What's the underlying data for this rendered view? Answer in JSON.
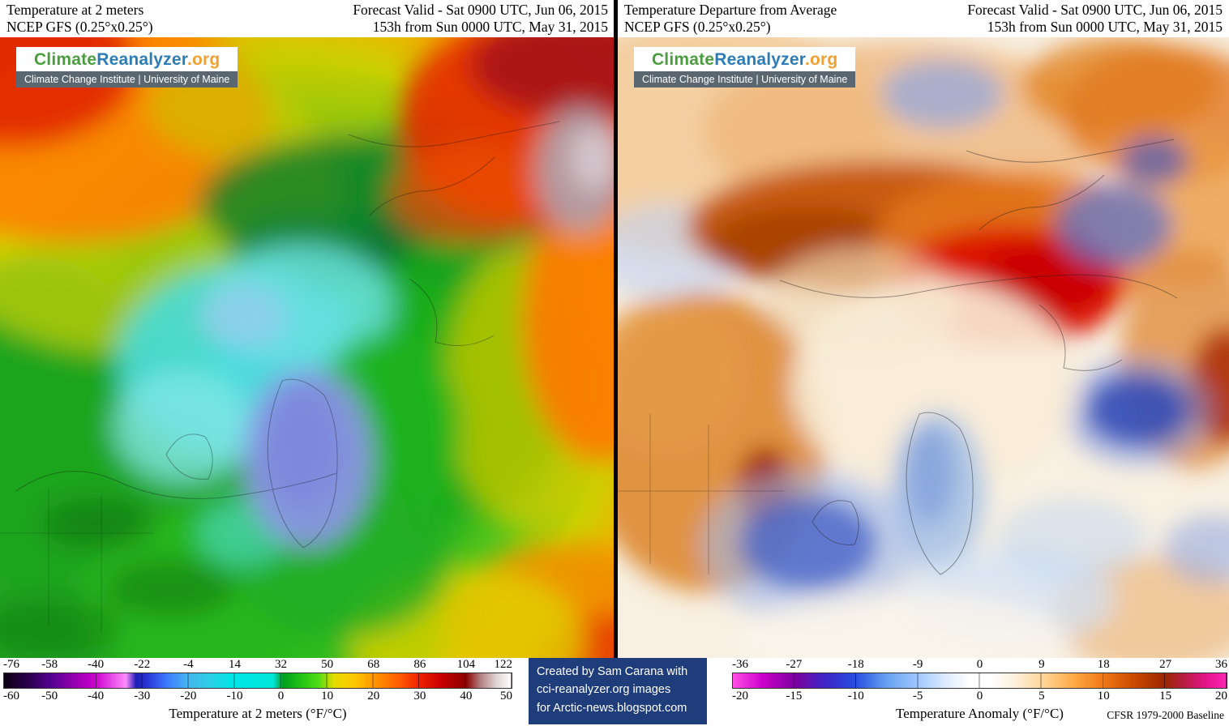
{
  "brand": {
    "climate": "Climate",
    "reanalyzer": "Reanalyzer",
    "org": ".org",
    "subtitle": "Climate Change Institute | University of Maine",
    "color_climate": "#4a9e3f",
    "color_reanalyzer": "#2d7cb5",
    "color_org": "#f0a030",
    "subtitle_bg": "#5b6770"
  },
  "left_panel": {
    "header": {
      "title_line1": "Temperature at 2 meters",
      "title_line2": "NCEP GFS (0.25°x0.25°)",
      "valid_line1": "Forecast Valid - Sat 0900 UTC, Jun 06, 2015",
      "valid_line2": "153h from Sun 0000 UTC, May 31, 2015"
    },
    "legend": {
      "ticks_f": [
        "-76",
        "-58",
        "-40",
        "-22",
        "-4",
        "14",
        "32",
        "50",
        "68",
        "86",
        "104",
        "122"
      ],
      "ticks_c": [
        "-60",
        "-50",
        "-40",
        "-30",
        "-20",
        "-10",
        "0",
        "10",
        "20",
        "30",
        "40",
        "50"
      ],
      "caption": "Temperature at 2 meters (°F/°C)",
      "gradient_stops": [
        "#0d0013 0%",
        "#2d0050 5%",
        "#52008f 9%",
        "#cc00cc 18%",
        "#ff8cff 24%",
        "#1e1eb9 26%",
        "#2832d2 28%",
        "#3c78ff 32%",
        "#46b4f0 36%",
        "#28d2e6 41%",
        "#00e6e6 45%",
        "#00e6dc 53%",
        "#00a01e 55%",
        "#28c814 59%",
        "#50dc14 62%",
        "#e6dc00 65%",
        "#ffc800 69%",
        "#ff9600 73%",
        "#ff5a00 78%",
        "#f01e00 82%",
        "#c80000 86%",
        "#8c0000 91%",
        "#b48484 94%",
        "#e0d2d2 97%",
        "#ffffff 100%"
      ]
    }
  },
  "right_panel": {
    "header": {
      "title_line1": "Temperature Departure from Average",
      "title_line2": "NCEP GFS (0.25°x0.25°)",
      "valid_line1": "Forecast Valid - Sat 0900 UTC, Jun 06, 2015",
      "valid_line2": "153h from Sun 0000 UTC, May 31, 2015"
    },
    "legend": {
      "ticks_f": [
        "-36",
        "-27",
        "-18",
        "-9",
        "0",
        "9",
        "18",
        "27",
        "36"
      ],
      "ticks_c": [
        "-20",
        "-15",
        "-10",
        "-5",
        "0",
        "5",
        "10",
        "15",
        "20"
      ],
      "caption": "Temperature Anomaly (°F/°C)",
      "baseline_note": "CFSR 1979-2000 Baseline",
      "gradient_stops": [
        "#ff50e6 0%",
        "#cc00cc 6%",
        "#7d00a0 12.5%",
        "#3c28c8 19%",
        "#2850e1 25%",
        "#64a0f0 31%",
        "#a0c8ff 37.5%",
        "#dceaff 43%",
        "#ffffff 48%",
        "#ffffff 52%",
        "#fdf0dc 57%",
        "#ffd79b 62.5%",
        "#ffaa46 69%",
        "#f07814 75%",
        "#cd4b00 81%",
        "#9b2800 87.5%",
        "#b41e3c 91%",
        "#e6148c 96%",
        "#ff28b4 100%"
      ]
    }
  },
  "credit": {
    "line1": "Created by Sam Carana with",
    "line2": "cci-reanalyzer.org images",
    "line3": "for Arctic-news.blogspot.com",
    "bg": "#1f3d7a"
  },
  "chart_data": [
    {
      "type": "heatmap",
      "title": "Temperature at 2 meters",
      "model": "NCEP GFS (0.25°x0.25°)",
      "valid": "Sat 0900 UTC, Jun 06, 2015",
      "lead": "153h from Sun 0000 UTC, May 31, 2015",
      "units": "°F/°C",
      "scale_ticks_f": [
        -76,
        -58,
        -40,
        -22,
        -4,
        14,
        32,
        50,
        68,
        86,
        104,
        122
      ],
      "scale_ticks_c": [
        -60,
        -50,
        -40,
        -30,
        -20,
        -10,
        0,
        10,
        20,
        30,
        40,
        50
      ],
      "projection": "north-polar",
      "legend_position": "bottom"
    },
    {
      "type": "heatmap",
      "title": "Temperature Departure from Average",
      "model": "NCEP GFS (0.25°x0.25°)",
      "valid": "Sat 0900 UTC, Jun 06, 2015",
      "lead": "153h from Sun 0000 UTC, May 31, 2015",
      "units": "°F/°C",
      "scale_ticks_f": [
        -36,
        -27,
        -18,
        -9,
        0,
        9,
        18,
        27,
        36
      ],
      "scale_ticks_c": [
        -20,
        -15,
        -10,
        -5,
        0,
        5,
        10,
        15,
        20
      ],
      "baseline": "CFSR 1979-2000 Baseline",
      "projection": "north-polar",
      "legend_position": "bottom"
    }
  ]
}
